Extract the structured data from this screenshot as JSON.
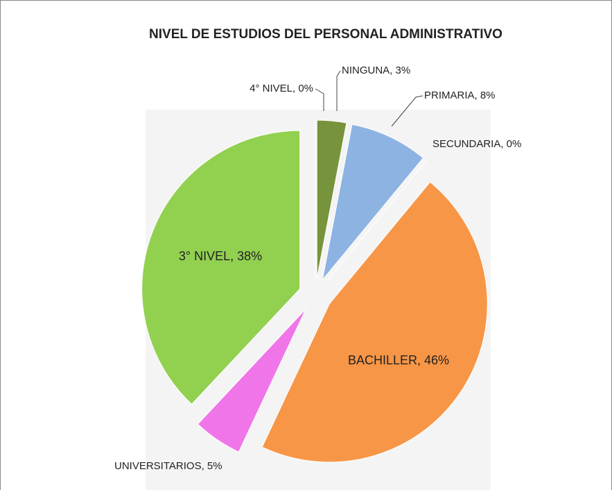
{
  "chart_data": {
    "type": "pie",
    "title": "NIVEL DE ESTUDIOS DEL PERSONAL ADMINISTRATIVO",
    "values": [
      3,
      8,
      0,
      46,
      5,
      38,
      0
    ],
    "value_labels": [
      "NINGUNA, 3%",
      "PRIMARIA, 8%",
      "SECUNDARIA, 0%",
      "BACHILLER, 46%",
      "UNIVERSITARIOS, 5%",
      "3° NIVEL, 38%",
      "4° NIVEL, 0%"
    ],
    "colors": [
      "#77933c",
      "#8db3e2",
      "#c0504d",
      "#f79646",
      "#f075e8",
      "#92d050",
      "#4f81bd"
    ]
  }
}
